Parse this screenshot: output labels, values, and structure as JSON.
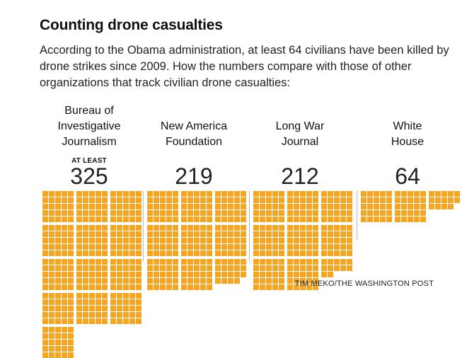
{
  "title": "Counting drone casualties",
  "subtitle": "According to the Obama administration, at least 64 civilians have been killed by drone strikes since 2009. How the numbers compare with those of other organizations that track civilian drone casualties:",
  "credit": "TIM MEKO/THE WASHINGTON POST",
  "colors": {
    "square": "#f4a623",
    "divider": "#bbbbbb"
  },
  "chart_data": {
    "type": "bar",
    "unit": "one square = one civilian death",
    "categories": [
      "Bureau of Investigative Journalism",
      "New America Foundation",
      "Long War Journal",
      "White House"
    ],
    "values": [
      325,
      219,
      212,
      64
    ],
    "labels": [
      {
        "lines": [
          "Bureau of",
          "Investigative",
          "Journalism"
        ],
        "qualifier": "AT LEAST",
        "value": "325"
      },
      {
        "lines": [
          "New America",
          "Foundation"
        ],
        "qualifier": "",
        "value": "219"
      },
      {
        "lines": [
          "Long War",
          "Journal"
        ],
        "qualifier": "",
        "value": "212"
      },
      {
        "lines": [
          "White",
          "House"
        ],
        "qualifier": "",
        "value": "64"
      }
    ]
  }
}
